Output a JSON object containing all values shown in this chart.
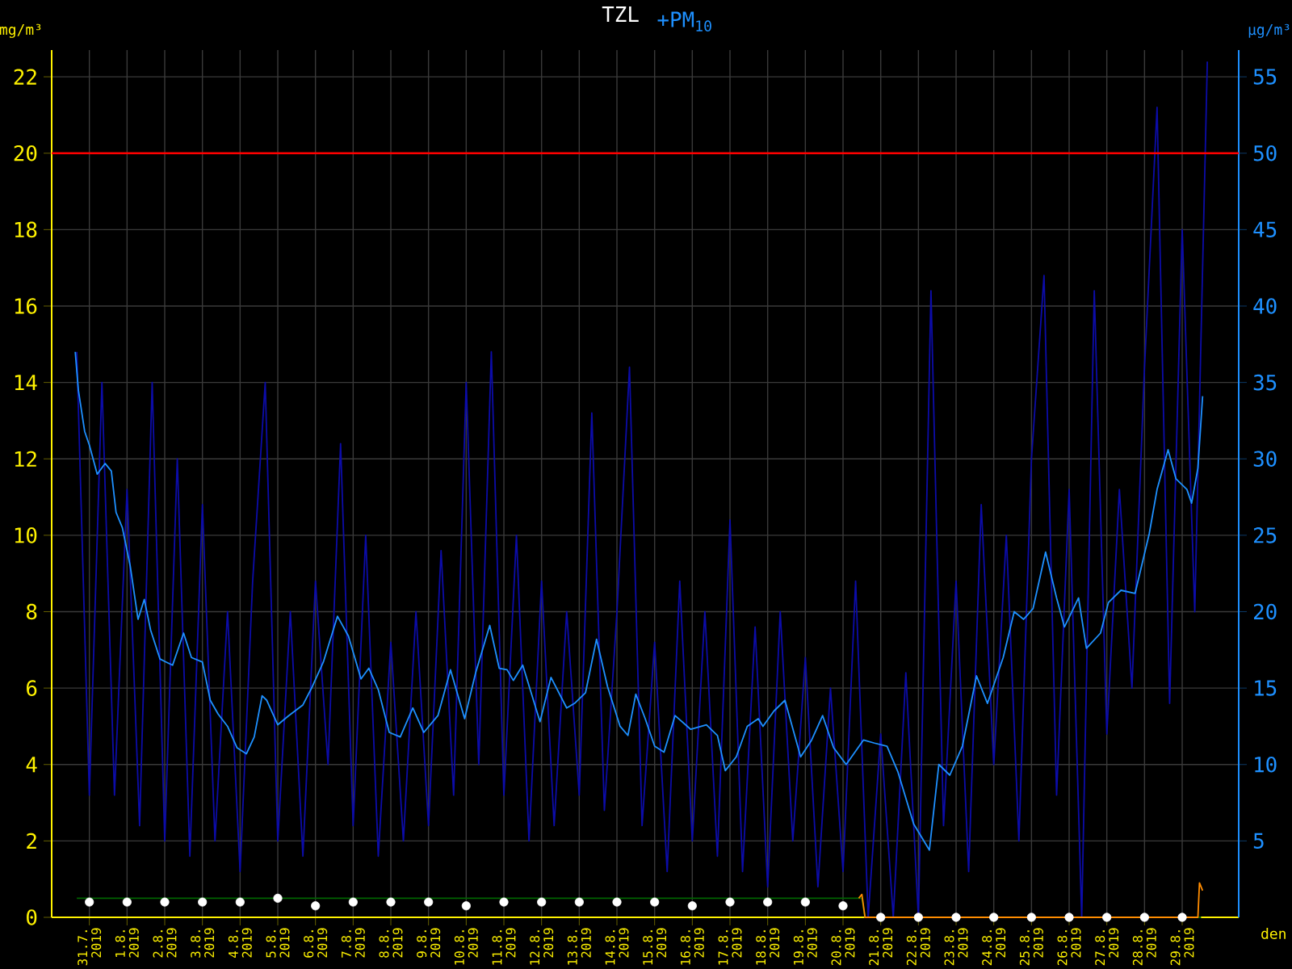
{
  "chart_data": {
    "type": "line",
    "title": "TZL",
    "xlabel": "den",
    "ylabel": "mg/m³",
    "y2label": "µg/m³",
    "xlim": [
      "2019-07-30T00:00",
      "2019-08-30T12:00"
    ],
    "ylim": [
      0,
      22.7
    ],
    "y2lim": [
      0,
      56.75
    ],
    "xticks": [
      {
        "value": "2019-07-31",
        "label": "31.7. 2019"
      },
      {
        "value": "2019-08-01",
        "label": "1.8. 2019"
      },
      {
        "value": "2019-08-02",
        "label": "2.8. 2019"
      },
      {
        "value": "2019-08-03",
        "label": "3.8. 2019"
      },
      {
        "value": "2019-08-04",
        "label": "4.8. 2019"
      },
      {
        "value": "2019-08-05",
        "label": "5.8. 2019"
      },
      {
        "value": "2019-08-06",
        "label": "6.8. 2019"
      },
      {
        "value": "2019-08-07",
        "label": "7.8. 2019"
      },
      {
        "value": "2019-08-08",
        "label": "8.8. 2019"
      },
      {
        "value": "2019-08-09",
        "label": "9.8. 2019"
      },
      {
        "value": "2019-08-10",
        "label": "10.8. 2019"
      },
      {
        "value": "2019-08-11",
        "label": "11.8. 2019"
      },
      {
        "value": "2019-08-12",
        "label": "12.8. 2019"
      },
      {
        "value": "2019-08-13",
        "label": "13.8. 2019"
      },
      {
        "value": "2019-08-14",
        "label": "14.8. 2019"
      },
      {
        "value": "2019-08-15",
        "label": "15.8. 2019"
      },
      {
        "value": "2019-08-16",
        "label": "16.8. 2019"
      },
      {
        "value": "2019-08-17",
        "label": "17.8. 2019"
      },
      {
        "value": "2019-08-18",
        "label": "18.8. 2019"
      },
      {
        "value": "2019-08-19",
        "label": "19.8. 2019"
      },
      {
        "value": "2019-08-20",
        "label": "20.8. 2019"
      },
      {
        "value": "2019-08-21",
        "label": "21.8. 2019"
      },
      {
        "value": "2019-08-22",
        "label": "22.8. 2019"
      },
      {
        "value": "2019-08-23",
        "label": "23.8. 2019"
      },
      {
        "value": "2019-08-24",
        "label": "24.8. 2019"
      },
      {
        "value": "2019-08-25",
        "label": "25.8. 2019"
      },
      {
        "value": "2019-08-26",
        "label": "26.8. 2019"
      },
      {
        "value": "2019-08-27",
        "label": "27.8. 2019"
      },
      {
        "value": "2019-08-28",
        "label": "28.8. 2019"
      },
      {
        "value": "2019-08-29",
        "label": "29.8. 2019"
      }
    ],
    "yticks": [
      0,
      2,
      4,
      6,
      8,
      10,
      12,
      14,
      16,
      18,
      20,
      22
    ],
    "y2ticks": [
      5,
      10,
      15,
      20,
      25,
      30,
      35,
      40,
      45,
      50,
      55
    ],
    "grid": true,
    "ref_lines": [
      {
        "axis": "y",
        "value": 20,
        "color": "#ff0000"
      }
    ],
    "series": [
      {
        "axis": "y2",
        "color": "#0c0ca8",
        "x": [
          "2019-07-30T16:00",
          "2019-07-31T00:00",
          "2019-07-31T08:00",
          "2019-07-31T16:00",
          "2019-08-01T00:00",
          "2019-08-01T08:00",
          "2019-08-01T16:00",
          "2019-08-02T00:00",
          "2019-08-02T08:00",
          "2019-08-02T16:00",
          "2019-08-03T00:00",
          "2019-08-03T08:00",
          "2019-08-03T16:00",
          "2019-08-04T00:00",
          "2019-08-04T08:00",
          "2019-08-04T16:00",
          "2019-08-05T00:00",
          "2019-08-05T08:00",
          "2019-08-05T16:00",
          "2019-08-06T00:00",
          "2019-08-06T08:00",
          "2019-08-06T16:00",
          "2019-08-07T00:00",
          "2019-08-07T08:00",
          "2019-08-07T16:00",
          "2019-08-08T00:00",
          "2019-08-08T08:00",
          "2019-08-08T16:00",
          "2019-08-09T00:00",
          "2019-08-09T08:00",
          "2019-08-09T16:00",
          "2019-08-10T00:00",
          "2019-08-10T08:00",
          "2019-08-10T16:00",
          "2019-08-11T00:00",
          "2019-08-11T08:00",
          "2019-08-11T16:00",
          "2019-08-12T00:00",
          "2019-08-12T08:00",
          "2019-08-12T16:00",
          "2019-08-13T00:00",
          "2019-08-13T08:00",
          "2019-08-13T16:00",
          "2019-08-14T00:00",
          "2019-08-14T08:00",
          "2019-08-14T16:00",
          "2019-08-15T00:00",
          "2019-08-15T08:00",
          "2019-08-15T16:00",
          "2019-08-16T00:00",
          "2019-08-16T08:00",
          "2019-08-16T16:00",
          "2019-08-17T00:00",
          "2019-08-17T08:00",
          "2019-08-17T16:00",
          "2019-08-18T00:00",
          "2019-08-18T08:00",
          "2019-08-18T16:00",
          "2019-08-19T00:00",
          "2019-08-19T08:00",
          "2019-08-19T16:00",
          "2019-08-20T00:00",
          "2019-08-20T08:00",
          "2019-08-20T16:00",
          "2019-08-21T00:00",
          "2019-08-21T08:00",
          "2019-08-21T16:00",
          "2019-08-22T00:00",
          "2019-08-22T08:00",
          "2019-08-22T16:00",
          "2019-08-23T00:00",
          "2019-08-23T08:00",
          "2019-08-23T16:00",
          "2019-08-24T00:00",
          "2019-08-24T08:00",
          "2019-08-24T16:00",
          "2019-08-25T00:00",
          "2019-08-25T08:00",
          "2019-08-25T16:00",
          "2019-08-26T00:00",
          "2019-08-26T08:00",
          "2019-08-26T16:00",
          "2019-08-27T00:00",
          "2019-08-27T08:00",
          "2019-08-27T16:00",
          "2019-08-28T00:00",
          "2019-08-28T08:00",
          "2019-08-28T16:00",
          "2019-08-29T00:00",
          "2019-08-29T08:00",
          "2019-08-29T16:00"
        ],
        "values": [
          37,
          8,
          35,
          8,
          28,
          6,
          35,
          5,
          30,
          4,
          27,
          5,
          20,
          3,
          22,
          35,
          5,
          20,
          4,
          22,
          10,
          31,
          6,
          25,
          4,
          18,
          5,
          20,
          6,
          24,
          8,
          35,
          10,
          37,
          8,
          25,
          5,
          22,
          6,
          20,
          8,
          33,
          7,
          20,
          36,
          6,
          18,
          3,
          22,
          5,
          20,
          4,
          26,
          3,
          19,
          2,
          20,
          5,
          17,
          2,
          15,
          3,
          22,
          0,
          12,
          0,
          16,
          0,
          41,
          6,
          22,
          3,
          27,
          10,
          25,
          5,
          30,
          42,
          8,
          28,
          0,
          41,
          12,
          28,
          15,
          36,
          53,
          14,
          45,
          20,
          56
        ]
      },
      {
        "axis": "y2",
        "name": "+PM$_{10}$",
        "color": "#1e90ff",
        "x": [
          "2019-07-30T15:00",
          "2019-07-30T17:00",
          "2019-07-30T21:00",
          "2019-07-31T00:00",
          "2019-07-31T05:00",
          "2019-07-31T10:00",
          "2019-07-31T14:00",
          "2019-07-31T17:00",
          "2019-07-31T21:00",
          "2019-08-01T02:00",
          "2019-08-01T07:00",
          "2019-08-01T11:00",
          "2019-08-01T15:00",
          "2019-08-01T21:00",
          "2019-08-02T01:00",
          "2019-08-02T05:00",
          "2019-08-02T12:00",
          "2019-08-02T17:00",
          "2019-08-03T00:00",
          "2019-08-03T05:00",
          "2019-08-03T10:00",
          "2019-08-03T16:00",
          "2019-08-03T22:00",
          "2019-08-04T04:00",
          "2019-08-04T09:00",
          "2019-08-04T14:00",
          "2019-08-04T17:00",
          "2019-08-05T00:00",
          "2019-08-05T07:00",
          "2019-08-05T16:00",
          "2019-08-05T22:00",
          "2019-08-06T05:00",
          "2019-08-06T14:00",
          "2019-08-06T21:00",
          "2019-08-07T05:00",
          "2019-08-07T10:00",
          "2019-08-07T16:00",
          "2019-08-07T23:00",
          "2019-08-08T06:00",
          "2019-08-08T14:00",
          "2019-08-08T21:00",
          "2019-08-09T06:00",
          "2019-08-09T14:00",
          "2019-08-09T23:00",
          "2019-08-10T06:00",
          "2019-08-10T15:00",
          "2019-08-10T21:00",
          "2019-08-11T02:00",
          "2019-08-11T06:00",
          "2019-08-11T12:00",
          "2019-08-11T23:00",
          "2019-08-12T06:00",
          "2019-08-12T16:00",
          "2019-08-12T21:00",
          "2019-08-13T04:00",
          "2019-08-13T11:00",
          "2019-08-13T18:00",
          "2019-08-14T02:00",
          "2019-08-14T07:00",
          "2019-08-14T12:00",
          "2019-08-14T18:00",
          "2019-08-15T00:00",
          "2019-08-15T06:00",
          "2019-08-15T13:00",
          "2019-08-15T23:00",
          "2019-08-16T09:00",
          "2019-08-16T16:00",
          "2019-08-16T21:00",
          "2019-08-17T04:00",
          "2019-08-17T11:00",
          "2019-08-17T18:00",
          "2019-08-17T21:00",
          "2019-08-18T04:00",
          "2019-08-18T11:00",
          "2019-08-18T21:00",
          "2019-08-19T04:00",
          "2019-08-19T11:00",
          "2019-08-19T18:00",
          "2019-08-20T02:00",
          "2019-08-20T13:00",
          "2019-08-20T20:00",
          "2019-08-21T04:00",
          "2019-08-21T11:00",
          "2019-08-21T21:00",
          "2019-08-22T07:00",
          "2019-08-22T13:00",
          "2019-08-22T20:00",
          "2019-08-23T04:00",
          "2019-08-23T13:00",
          "2019-08-23T20:00",
          "2019-08-24T06:00",
          "2019-08-24T13:00",
          "2019-08-24T19:00",
          "2019-08-25T01:00",
          "2019-08-25T09:00",
          "2019-08-25T16:00",
          "2019-08-25T21:00",
          "2019-08-26T06:00",
          "2019-08-26T11:00",
          "2019-08-26T20:00",
          "2019-08-27T01:00",
          "2019-08-27T09:00",
          "2019-08-27T18:00",
          "2019-08-28T03:00",
          "2019-08-28T08:00",
          "2019-08-28T15:00",
          "2019-08-28T20:00",
          "2019-08-29T03:00",
          "2019-08-29T06:00",
          "2019-08-29T10:00",
          "2019-08-29T13:00"
        ],
        "values": [
          37.0,
          34.5,
          31.8,
          30.9,
          29.0,
          29.7,
          29.2,
          26.5,
          25.5,
          23.0,
          19.5,
          20.8,
          18.8,
          16.9,
          16.7,
          16.5,
          18.6,
          17.0,
          16.7,
          14.2,
          13.3,
          12.5,
          11.1,
          10.7,
          11.8,
          14.5,
          14.2,
          12.6,
          13.2,
          13.9,
          15.1,
          16.7,
          19.7,
          18.4,
          15.6,
          16.3,
          14.9,
          12.1,
          11.8,
          13.7,
          12.1,
          13.2,
          16.2,
          13.0,
          16.0,
          19.1,
          16.3,
          16.2,
          15.5,
          16.5,
          12.8,
          15.7,
          13.7,
          14.0,
          14.7,
          18.2,
          15.1,
          12.5,
          11.9,
          14.6,
          13.0,
          11.2,
          10.8,
          13.2,
          12.3,
          12.6,
          11.9,
          9.6,
          10.5,
          12.5,
          13.0,
          12.5,
          13.5,
          14.2,
          10.5,
          11.6,
          13.2,
          11.1,
          10.0,
          11.6,
          11.4,
          11.2,
          9.5,
          6.1,
          4.4,
          10.0,
          9.3,
          11.2,
          15.8,
          14.0,
          17.0,
          20.0,
          19.5,
          20.2,
          23.9,
          20.9,
          19.0,
          20.9,
          17.6,
          18.6,
          20.6,
          21.4,
          21.2,
          25.1,
          28.0,
          30.6,
          28.7,
          28.0,
          27.1,
          29.4,
          34.1
        ]
      },
      {
        "color": "#006400",
        "x": [
          "2019-07-30T16:00",
          "2019-08-20T12:00",
          "2019-08-20T14:00",
          "2019-08-29T12:00"
        ],
        "values": [
          0.5,
          0.5,
          0,
          0
        ]
      },
      {
        "color": "#ff8c00",
        "x": [
          "2019-08-20T10:00",
          "2019-08-20T12:00",
          "2019-08-20T14:00",
          "2019-08-28T22:00",
          "2019-08-29T10:00",
          "2019-08-29T11:00",
          "2019-08-29T13:00"
        ],
        "values": [
          0.5,
          0.6,
          0,
          0,
          0,
          0.9,
          0.7
        ]
      },
      {
        "type": "scatter",
        "marker": "circle",
        "color": "#ffffff",
        "x": [
          "2019-07-31",
          "2019-08-01",
          "2019-08-02",
          "2019-08-03",
          "2019-08-04",
          "2019-08-05",
          "2019-08-06",
          "2019-08-07",
          "2019-08-08",
          "2019-08-09",
          "2019-08-10",
          "2019-08-11",
          "2019-08-12",
          "2019-08-13",
          "2019-08-14",
          "2019-08-15",
          "2019-08-16",
          "2019-08-17",
          "2019-08-18",
          "2019-08-19",
          "2019-08-20",
          "2019-08-21",
          "2019-08-22",
          "2019-08-23",
          "2019-08-24",
          "2019-08-25",
          "2019-08-26",
          "2019-08-27",
          "2019-08-28",
          "2019-08-29"
        ],
        "values": [
          0.4,
          0.4,
          0.4,
          0.4,
          0.4,
          0.5,
          0.3,
          0.4,
          0.4,
          0.4,
          0.3,
          0.4,
          0.4,
          0.4,
          0.4,
          0.4,
          0.3,
          0.4,
          0.4,
          0.4,
          0.3,
          0,
          0,
          0,
          0,
          0,
          0,
          0,
          0,
          0
        ]
      }
    ]
  }
}
